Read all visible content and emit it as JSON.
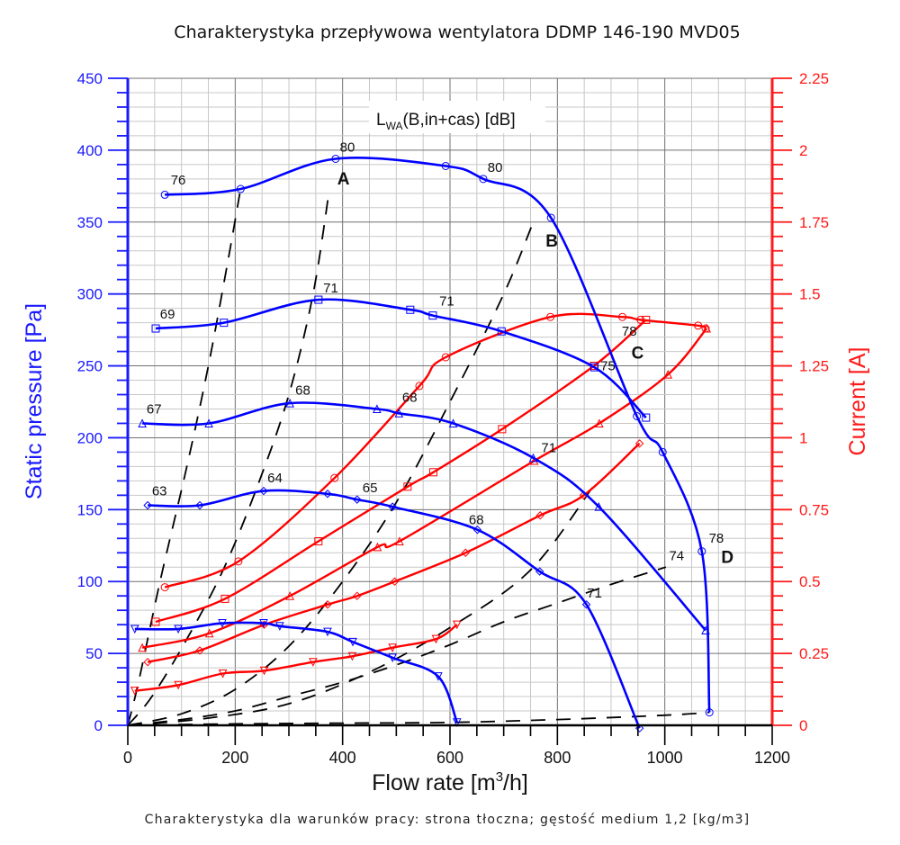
{
  "chart_data": {
    "type": "line",
    "title": "Charakterystyka przepływowa wentylatora DDMP 146-190 MVD05",
    "footnote": "Charakterystyka dla warunków pracy: strona tłoczna; gęstość medium 1,2 [kg/m3]",
    "xlabel_main": "Flow rate [m",
    "xlabel_sup": "3",
    "xlabel_end": "/h]",
    "ylabel_left": "Static pressure [Pa]",
    "ylabel_right": "Current [A]",
    "legend_box": {
      "main": "L",
      "sub": "WA",
      "rest": "(B,in+cas) [dB]"
    },
    "xlim": [
      0,
      1200
    ],
    "ylim_left": [
      0,
      450
    ],
    "ylim_right": [
      0,
      2.25
    ],
    "x_ticks": [
      "0",
      "200",
      "400",
      "600",
      "800",
      "1000",
      "1200"
    ],
    "y_ticks_left": [
      "0",
      "50",
      "100",
      "150",
      "200",
      "250",
      "300",
      "350",
      "400",
      "450"
    ],
    "y_ticks_right": [
      "0",
      "0.25",
      "0.5",
      "0.75",
      "1",
      "1.25",
      "1.5",
      "1.75",
      "2",
      "2.25"
    ],
    "grid": true,
    "colors": {
      "pressure": "#0000ff",
      "current": "#ff0000",
      "system": "#000000",
      "left_axis": "#1a1aff",
      "right_axis": "#ff1a1a"
    },
    "pressure_series": [
      {
        "name": "pressure-1",
        "marker": "circle",
        "x": [
          69,
          210,
          387,
          592,
          662,
          788,
          948,
          996,
          1069,
          1083
        ],
        "y": [
          369,
          373,
          394,
          389,
          380,
          353,
          215,
          190,
          121,
          9
        ]
      },
      {
        "name": "pressure-2",
        "marker": "square",
        "x": [
          52,
          179,
          355,
          526,
          568,
          696,
          869,
          965
        ],
        "y": [
          276,
          280,
          296,
          289,
          285,
          274,
          249,
          214
        ]
      },
      {
        "name": "pressure-3",
        "marker": "triangle-up",
        "x": [
          27,
          151,
          302,
          464,
          505,
          606,
          755,
          877,
          1076
        ],
        "y": [
          210,
          210,
          224,
          220,
          217,
          210,
          186,
          152,
          66
        ]
      },
      {
        "name": "pressure-4",
        "marker": "diamond",
        "x": [
          37,
          134,
          253,
          372,
          427,
          493,
          651,
          767,
          854,
          953
        ],
        "y": [
          153,
          153,
          163,
          161,
          157,
          152,
          136,
          107,
          84,
          -2
        ]
      },
      {
        "name": "pressure-5",
        "marker": "triangle-down",
        "x": [
          13,
          94,
          176,
          253,
          283,
          372,
          419,
          493,
          578,
          613
        ],
        "y": [
          67,
          67,
          71,
          71,
          69,
          65,
          58,
          47,
          34,
          2
        ]
      }
    ],
    "current_series": [
      {
        "name": "current-1",
        "marker": "circle",
        "x": [
          69,
          206,
          385,
          543,
          592,
          787,
          921,
          955,
          1062,
          1076
        ],
        "y": [
          0.48,
          0.57,
          0.86,
          1.18,
          1.28,
          1.42,
          1.42,
          1.41,
          1.39,
          1.38
        ]
      },
      {
        "name": "current-2",
        "marker": "square",
        "x": [
          52,
          181,
          355,
          521,
          569,
          697,
          868,
          965
        ],
        "y": [
          0.36,
          0.44,
          0.64,
          0.83,
          0.88,
          1.03,
          1.25,
          1.41
        ]
      },
      {
        "name": "current-3",
        "marker": "triangle-up",
        "x": [
          27,
          152,
          302,
          465,
          506,
          757,
          878,
          1006,
          1078
        ],
        "y": [
          0.27,
          0.32,
          0.45,
          0.62,
          0.64,
          0.92,
          1.05,
          1.22,
          1.38
        ]
      },
      {
        "name": "current-4",
        "marker": "diamond",
        "x": [
          37,
          134,
          254,
          372,
          427,
          497,
          629,
          768,
          849,
          953
        ],
        "y": [
          0.22,
          0.26,
          0.35,
          0.42,
          0.45,
          0.5,
          0.6,
          0.73,
          0.8,
          0.98
        ]
      },
      {
        "name": "current-5",
        "marker": "triangle-down",
        "x": [
          13,
          94,
          177,
          254,
          345,
          418,
          493,
          574,
          613
        ],
        "y": [
          0.12,
          0.14,
          0.18,
          0.19,
          0.22,
          0.24,
          0.27,
          0.3,
          0.35
        ]
      }
    ],
    "system_curves": [
      {
        "name": "A",
        "x": [
          0,
          20,
          60,
          110,
          150,
          185,
          210
        ],
        "y": [
          0,
          30,
          100,
          180,
          250,
          320,
          373
        ]
      },
      {
        "name": "B",
        "x": [
          0,
          45,
          110,
          180,
          245,
          300,
          345,
          375
        ],
        "y": [
          0,
          20,
          60,
          110,
          170,
          230,
          300,
          372
        ]
      },
      {
        "name": "C",
        "x": [
          0,
          100,
          200,
          300,
          400,
          500,
          600,
          700,
          755
        ],
        "y": [
          0,
          8,
          25,
          55,
          100,
          155,
          225,
          300,
          350
        ]
      },
      {
        "name": "D",
        "x": [
          0,
          150,
          300,
          450,
          600,
          750,
          870
        ],
        "y": [
          0,
          5,
          15,
          37,
          68,
          108,
          168
        ]
      },
      {
        "name": "E",
        "x": [
          0,
          100,
          200,
          300,
          400,
          500,
          600,
          700,
          800,
          900,
          1002
        ],
        "y": [
          0,
          4,
          10,
          20,
          30,
          42,
          56,
          72,
          85,
          98,
          110
        ]
      },
      {
        "name": "F",
        "x": [
          0,
          200,
          400,
          600,
          800,
          1000,
          1083
        ],
        "y": [
          0,
          1,
          1.5,
          2,
          4,
          7,
          9
        ]
      }
    ],
    "point_labels": [
      {
        "text": "76",
        "x": 80,
        "y": 376
      },
      {
        "text": "80",
        "x": 395,
        "y": 399
      },
      {
        "text": "80",
        "x": 670,
        "y": 385
      },
      {
        "text": "69",
        "x": 60,
        "y": 283
      },
      {
        "text": "71",
        "x": 364,
        "y": 301
      },
      {
        "text": "71",
        "x": 580,
        "y": 292
      },
      {
        "text": "67",
        "x": 35,
        "y": 217
      },
      {
        "text": "68",
        "x": 312,
        "y": 230
      },
      {
        "text": "68",
        "x": 511,
        "y": 225
      },
      {
        "text": "63",
        "x": 45,
        "y": 160
      },
      {
        "text": "64",
        "x": 260,
        "y": 169
      },
      {
        "text": "65",
        "x": 437,
        "y": 162
      },
      {
        "text": "68",
        "x": 635,
        "y": 140
      },
      {
        "text": "71",
        "x": 770,
        "y": 190
      },
      {
        "text": "71",
        "x": 855,
        "y": 89
      },
      {
        "text": "75",
        "x": 880,
        "y": 247
      },
      {
        "text": "78",
        "x": 920,
        "y": 271
      },
      {
        "text": "74",
        "x": 1008,
        "y": 115
      },
      {
        "text": "78",
        "x": 1082,
        "y": 127
      }
    ],
    "curve_letters": [
      {
        "text": "A",
        "x": 390,
        "y": 376
      },
      {
        "text": "B",
        "x": 778,
        "y": 333
      },
      {
        "text": "C",
        "x": 938,
        "y": 255
      },
      {
        "text": "D",
        "x": 1105,
        "y": 113
      }
    ]
  }
}
